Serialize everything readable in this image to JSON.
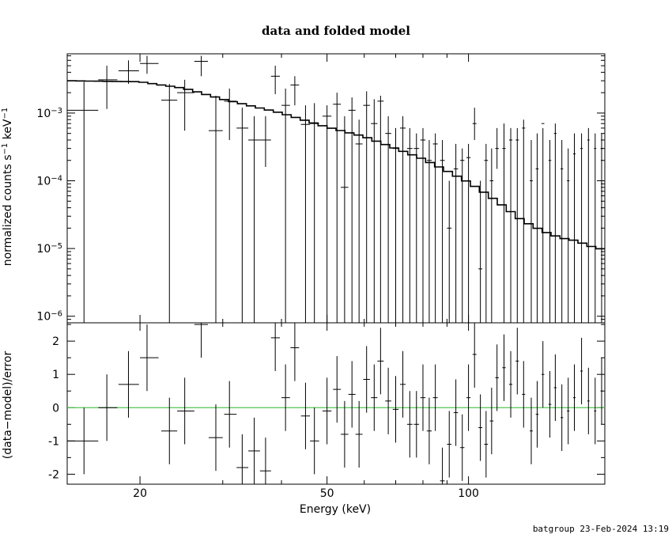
{
  "chart_data": {
    "type": "scatter",
    "title": "data and folded model",
    "xlabel": "Energy (keV)",
    "xscale": "log",
    "xlim": [
      14,
      195
    ],
    "xticks": [
      20,
      50,
      100
    ],
    "footer": "batgroup 23-Feb-2024 13:19",
    "grid": false,
    "top": {
      "ylabel_base": "normalized counts s",
      "ylabel_mid": " keV",
      "ylabel_exp": "−1",
      "yscale": "log",
      "ylim": [
        8e-07,
        0.0075
      ],
      "yticks": [
        {
          "value": 0.001,
          "base": "10",
          "exp": "−3"
        },
        {
          "value": 0.0001,
          "base": "10",
          "exp": "−4"
        },
        {
          "value": 1e-05,
          "base": "10",
          "exp": "−5"
        },
        {
          "value": 1e-06,
          "base": "10",
          "exp": "−6"
        }
      ],
      "data": [
        {
          "x": 15.2,
          "xlo": 14.0,
          "xhi": 16.3,
          "y": 0.0011,
          "ylo": 8e-07,
          "yhi": 0.0029
        },
        {
          "x": 17.0,
          "xlo": 16.3,
          "xhi": 17.9,
          "y": 0.0031,
          "ylo": 0.00115,
          "yhi": 0.005
        },
        {
          "x": 18.9,
          "xlo": 18.0,
          "xhi": 19.9,
          "y": 0.0042,
          "ylo": 0.0027,
          "yhi": 0.006
        },
        {
          "x": 20.7,
          "xlo": 20.0,
          "xhi": 21.9,
          "y": 0.0054,
          "ylo": 0.0038,
          "yhi": 0.007
        },
        {
          "x": 23.1,
          "xlo": 22.2,
          "xhi": 24.0,
          "y": 0.00155,
          "ylo": 8e-07,
          "yhi": 0.0027
        },
        {
          "x": 24.9,
          "xlo": 24.0,
          "xhi": 26.1,
          "y": 0.002,
          "ylo": 0.00055,
          "yhi": 0.0031
        },
        {
          "x": 27.0,
          "xlo": 26.1,
          "xhi": 27.9,
          "y": 0.0058,
          "ylo": 0.0035,
          "yhi": 0.007
        },
        {
          "x": 29.0,
          "xlo": 28.0,
          "xhi": 30.0,
          "y": 0.00055,
          "ylo": 8e-07,
          "yhi": 0.0018
        },
        {
          "x": 31.0,
          "xlo": 30.2,
          "xhi": 32.1,
          "y": 0.0015,
          "ylo": 0.0004,
          "yhi": 0.0023
        },
        {
          "x": 33.0,
          "xlo": 32.1,
          "xhi": 34.0,
          "y": 0.0006,
          "ylo": 8e-07,
          "yhi": 0.0012
        },
        {
          "x": 35.0,
          "xlo": 34.0,
          "xhi": 36.0,
          "y": 0.0004,
          "ylo": 8e-07,
          "yhi": 0.0009
        },
        {
          "x": 37.0,
          "xlo": 36.0,
          "xhi": 38.0,
          "y": 0.0004,
          "ylo": 0.00016,
          "yhi": 0.0009
        },
        {
          "x": 38.8,
          "xlo": 38.0,
          "xhi": 39.7,
          "y": 0.0035,
          "ylo": 0.0019,
          "yhi": 0.005
        },
        {
          "x": 40.8,
          "xlo": 40.0,
          "xhi": 41.7,
          "y": 0.0013,
          "ylo": 8e-07,
          "yhi": 0.0023
        },
        {
          "x": 42.7,
          "xlo": 41.8,
          "xhi": 43.6,
          "y": 0.0026,
          "ylo": 0.0013,
          "yhi": 0.0035
        },
        {
          "x": 45.0,
          "xlo": 44.0,
          "xhi": 46.0,
          "y": 0.00068,
          "ylo": 8e-07,
          "yhi": 0.0013
        },
        {
          "x": 47.0,
          "xlo": 46.0,
          "xhi": 48.1,
          "y": 0.0007,
          "ylo": 8e-07,
          "yhi": 0.0014
        },
        {
          "x": 50.0,
          "xlo": 48.9,
          "xhi": 51.1,
          "y": 0.0009,
          "ylo": 8e-07,
          "yhi": 0.0013
        },
        {
          "x": 52.5,
          "xlo": 51.5,
          "xhi": 53.5,
          "y": 0.00135,
          "ylo": 8e-07,
          "yhi": 0.002
        },
        {
          "x": 54.5,
          "xlo": 53.5,
          "xhi": 55.5,
          "y": 8e-05,
          "ylo": 8e-07,
          "yhi": 0.0009
        },
        {
          "x": 56.5,
          "xlo": 55.5,
          "xhi": 57.5,
          "y": 0.0011,
          "ylo": 8e-07,
          "yhi": 0.0017
        },
        {
          "x": 58.5,
          "xlo": 57.5,
          "xhi": 59.5,
          "y": 0.00035,
          "ylo": 8e-07,
          "yhi": 0.0008
        },
        {
          "x": 60.7,
          "xlo": 59.7,
          "xhi": 61.7,
          "y": 0.0013,
          "ylo": 8e-07,
          "yhi": 0.0021
        },
        {
          "x": 63.0,
          "xlo": 62.0,
          "xhi": 64.0,
          "y": 0.0007,
          "ylo": 8e-07,
          "yhi": 0.0016
        },
        {
          "x": 65.0,
          "xlo": 64.0,
          "xhi": 66.0,
          "y": 0.0015,
          "ylo": 8e-07,
          "yhi": 0.0018
        },
        {
          "x": 67.5,
          "xlo": 66.5,
          "xhi": 68.5,
          "y": 0.0005,
          "ylo": 8e-07,
          "yhi": 0.0009
        },
        {
          "x": 70.0,
          "xlo": 69.0,
          "xhi": 71.0,
          "y": 0.0003,
          "ylo": 8e-07,
          "yhi": 0.0006
        },
        {
          "x": 72.5,
          "xlo": 71.5,
          "xhi": 73.5,
          "y": 0.0006,
          "ylo": 8e-07,
          "yhi": 0.0009
        },
        {
          "x": 75.0,
          "xlo": 74.0,
          "xhi": 76.0,
          "y": 0.0003,
          "ylo": 8e-07,
          "yhi": 0.0006
        },
        {
          "x": 77.5,
          "xlo": 76.5,
          "xhi": 78.5,
          "y": 0.0003,
          "ylo": 8e-07,
          "yhi": 0.0005
        },
        {
          "x": 80.0,
          "xlo": 79.0,
          "xhi": 81.0,
          "y": 0.0004,
          "ylo": 8e-07,
          "yhi": 0.0006
        },
        {
          "x": 82.5,
          "xlo": 81.5,
          "xhi": 83.5,
          "y": 0.0002,
          "ylo": 8e-07,
          "yhi": 0.0004
        },
        {
          "x": 85.0,
          "xlo": 84.0,
          "xhi": 86.0,
          "y": 0.00035,
          "ylo": 8e-07,
          "yhi": 0.0005
        },
        {
          "x": 88.0,
          "xlo": 87.0,
          "xhi": 89.0,
          "y": 0.0002,
          "ylo": 8e-07,
          "yhi": 0.0004
        },
        {
          "x": 91.0,
          "xlo": 90.0,
          "xhi": 92.0,
          "y": 2e-05,
          "ylo": 8e-07,
          "yhi": 0.0001
        },
        {
          "x": 94.0,
          "xlo": 93.0,
          "xhi": 95.0,
          "y": 0.00015,
          "ylo": 8e-07,
          "yhi": 0.00035
        },
        {
          "x": 97.0,
          "xlo": 96.0,
          "xhi": 98.0,
          "y": 0.0002,
          "ylo": 8e-07,
          "yhi": 0.0003
        },
        {
          "x": 100.0,
          "xlo": 99.0,
          "xhi": 101.0,
          "y": 0.00022,
          "ylo": 8e-07,
          "yhi": 0.00035
        },
        {
          "x": 103.0,
          "xlo": 102.0,
          "xhi": 104.0,
          "y": 0.0007,
          "ylo": 0.0004,
          "yhi": 0.0012
        },
        {
          "x": 106.0,
          "xlo": 105.0,
          "xhi": 107.0,
          "y": 5e-06,
          "ylo": 8e-07,
          "yhi": 0.0001
        },
        {
          "x": 109.0,
          "xlo": 108.0,
          "xhi": 110.0,
          "y": 0.0002,
          "ylo": 8e-07,
          "yhi": 0.00035
        },
        {
          "x": 112.0,
          "xlo": 111.0,
          "xhi": 113.0,
          "y": 0.0001,
          "ylo": 8e-07,
          "yhi": 0.0003
        },
        {
          "x": 115.0,
          "xlo": 114.0,
          "xhi": 116.0,
          "y": 0.0003,
          "ylo": 0.00015,
          "yhi": 0.0006
        },
        {
          "x": 119.0,
          "xlo": 118.0,
          "xhi": 120.0,
          "y": 0.0003,
          "ylo": 8e-07,
          "yhi": 0.0007
        },
        {
          "x": 123.0,
          "xlo": 122.0,
          "xhi": 124.0,
          "y": 0.0004,
          "ylo": 8e-07,
          "yhi": 0.0006
        },
        {
          "x": 127.0,
          "xlo": 126.0,
          "xhi": 128.0,
          "y": 0.0004,
          "ylo": 8e-07,
          "yhi": 0.0006
        },
        {
          "x": 131.0,
          "xlo": 130.0,
          "xhi": 132.0,
          "y": 0.0006,
          "ylo": 8e-07,
          "yhi": 0.0008
        },
        {
          "x": 136.0,
          "xlo": 135.0,
          "xhi": 137.0,
          "y": 0.0001,
          "ylo": 8e-07,
          "yhi": 0.0004
        },
        {
          "x": 140.0,
          "xlo": 139.0,
          "xhi": 141.0,
          "y": 0.00015,
          "ylo": 8e-07,
          "yhi": 0.0005
        },
        {
          "x": 144.0,
          "xlo": 143.0,
          "xhi": 145.0,
          "y": 0.0007,
          "ylo": 8e-07,
          "yhi": 0.0006
        },
        {
          "x": 149.0,
          "xlo": 148.0,
          "xhi": 150.0,
          "y": 0.0002,
          "ylo": 8e-07,
          "yhi": 0.0004
        },
        {
          "x": 153.0,
          "xlo": 152.0,
          "xhi": 154.0,
          "y": 0.0005,
          "ylo": 8e-07,
          "yhi": 0.0007
        },
        {
          "x": 158.0,
          "xlo": 157.0,
          "xhi": 159.0,
          "y": 0.00015,
          "ylo": 8e-07,
          "yhi": 0.0004
        },
        {
          "x": 163.0,
          "xlo": 162.0,
          "xhi": 164.0,
          "y": 0.0001,
          "ylo": 8e-07,
          "yhi": 0.0003
        },
        {
          "x": 168.0,
          "xlo": 167.0,
          "xhi": 169.0,
          "y": 0.00025,
          "ylo": 8e-07,
          "yhi": 0.0005
        },
        {
          "x": 174.0,
          "xlo": 173.0,
          "xhi": 175.0,
          "y": 0.0003,
          "ylo": 8e-07,
          "yhi": 0.0005
        },
        {
          "x": 180.0,
          "xlo": 179.0,
          "xhi": 181.0,
          "y": 0.0004,
          "ylo": 8e-07,
          "yhi": 0.0006
        },
        {
          "x": 186.0,
          "xlo": 185.0,
          "xhi": 187.0,
          "y": 0.0003,
          "ylo": 8e-07,
          "yhi": 0.0005
        },
        {
          "x": 192.0,
          "xlo": 191.0,
          "xhi": 193.0,
          "y": 0.0003,
          "ylo": 8e-07,
          "yhi": 0.0005
        }
      ],
      "model_anchor": [
        {
          "x": 14.0,
          "y": 0.003
        },
        {
          "x": 20.0,
          "y": 0.0029
        },
        {
          "x": 25.0,
          "y": 0.0023
        },
        {
          "x": 30.0,
          "y": 0.0016
        },
        {
          "x": 40.0,
          "y": 0.001
        },
        {
          "x": 50.0,
          "y": 0.00062
        },
        {
          "x": 60.0,
          "y": 0.00045
        },
        {
          "x": 70.0,
          "y": 0.0003
        },
        {
          "x": 80.0,
          "y": 0.00021
        },
        {
          "x": 90.0,
          "y": 0.00014
        },
        {
          "x": 100.0,
          "y": 9.5e-05
        },
        {
          "x": 110.0,
          "y": 6.2e-05
        },
        {
          "x": 120.0,
          "y": 4e-05
        },
        {
          "x": 130.0,
          "y": 2.6e-05
        },
        {
          "x": 140.0,
          "y": 2e-05
        },
        {
          "x": 150.0,
          "y": 1.6e-05
        },
        {
          "x": 160.0,
          "y": 1.4e-05
        },
        {
          "x": 170.0,
          "y": 1.3e-05
        },
        {
          "x": 180.0,
          "y": 1.1e-05
        },
        {
          "x": 195.0,
          "y": 9.5e-06
        }
      ]
    },
    "bottom": {
      "ylabel": "(data−model)/error",
      "ylim": [
        -2.3,
        2.55
      ],
      "yticks": [
        -2,
        -1,
        0,
        1,
        2
      ],
      "zero_line_color": "#55c455",
      "data": [
        {
          "x": 15.2,
          "xlo": 14.0,
          "xhi": 16.3,
          "y": -1.0,
          "yerr": 1.0
        },
        {
          "x": 17.0,
          "xlo": 16.3,
          "xhi": 17.9,
          "y": 0.0,
          "yerr": 1.0
        },
        {
          "x": 18.9,
          "xlo": 18.0,
          "xhi": 19.9,
          "y": 0.7,
          "yerr": 1.0
        },
        {
          "x": 20.7,
          "xlo": 20.0,
          "xhi": 21.9,
          "y": 1.5,
          "yerr": 1.0
        },
        {
          "x": 23.1,
          "xlo": 22.2,
          "xhi": 24.0,
          "y": -0.7,
          "yerr": 1.0
        },
        {
          "x": 24.9,
          "xlo": 24.0,
          "xhi": 26.1,
          "y": -0.1,
          "yerr": 1.0
        },
        {
          "x": 27.0,
          "xlo": 26.1,
          "xhi": 27.9,
          "y": 2.5,
          "yerr": 1.0
        },
        {
          "x": 29.0,
          "xlo": 28.0,
          "xhi": 30.0,
          "y": -0.9,
          "yerr": 1.0
        },
        {
          "x": 31.0,
          "xlo": 30.2,
          "xhi": 32.1,
          "y": -0.2,
          "yerr": 1.0
        },
        {
          "x": 33.0,
          "xlo": 32.1,
          "xhi": 34.0,
          "y": -1.8,
          "yerr": 1.0
        },
        {
          "x": 35.0,
          "xlo": 34.0,
          "xhi": 36.0,
          "y": -1.3,
          "yerr": 1.0
        },
        {
          "x": 37.0,
          "xlo": 36.0,
          "xhi": 38.0,
          "y": -1.9,
          "yerr": 1.0
        },
        {
          "x": 38.8,
          "xlo": 38.0,
          "xhi": 39.7,
          "y": 2.1,
          "yerr": 1.0
        },
        {
          "x": 40.8,
          "xlo": 40.0,
          "xhi": 41.7,
          "y": 0.3,
          "yerr": 1.0
        },
        {
          "x": 42.7,
          "xlo": 41.8,
          "xhi": 43.6,
          "y": 1.8,
          "yerr": 1.0
        },
        {
          "x": 45.0,
          "xlo": 44.0,
          "xhi": 46.0,
          "y": -0.25,
          "yerr": 1.0
        },
        {
          "x": 47.0,
          "xlo": 46.0,
          "xhi": 48.1,
          "y": -1.0,
          "yerr": 1.0
        },
        {
          "x": 50.0,
          "xlo": 48.9,
          "xhi": 51.1,
          "y": -0.1,
          "yerr": 1.0
        },
        {
          "x": 52.5,
          "xlo": 51.5,
          "xhi": 53.5,
          "y": 0.55,
          "yerr": 1.0
        },
        {
          "x": 54.5,
          "xlo": 53.5,
          "xhi": 55.5,
          "y": -0.8,
          "yerr": 1.0
        },
        {
          "x": 56.5,
          "xlo": 55.5,
          "xhi": 57.5,
          "y": 0.4,
          "yerr": 1.0
        },
        {
          "x": 58.5,
          "xlo": 57.5,
          "xhi": 59.5,
          "y": -0.8,
          "yerr": 1.0
        },
        {
          "x": 60.7,
          "xlo": 59.7,
          "xhi": 61.7,
          "y": 0.85,
          "yerr": 1.0
        },
        {
          "x": 63.0,
          "xlo": 62.0,
          "xhi": 64.0,
          "y": 0.3,
          "yerr": 1.0
        },
        {
          "x": 65.0,
          "xlo": 64.0,
          "xhi": 66.0,
          "y": 1.4,
          "yerr": 1.0
        },
        {
          "x": 67.5,
          "xlo": 66.5,
          "xhi": 68.5,
          "y": 0.2,
          "yerr": 1.0
        },
        {
          "x": 70.0,
          "xlo": 69.0,
          "xhi": 71.0,
          "y": -0.05,
          "yerr": 1.0
        },
        {
          "x": 72.5,
          "xlo": 71.5,
          "xhi": 73.5,
          "y": 0.7,
          "yerr": 1.0
        },
        {
          "x": 75.0,
          "xlo": 74.0,
          "xhi": 76.0,
          "y": -0.5,
          "yerr": 1.0
        },
        {
          "x": 77.5,
          "xlo": 76.5,
          "xhi": 78.5,
          "y": -0.5,
          "yerr": 1.0
        },
        {
          "x": 80.0,
          "xlo": 79.0,
          "xhi": 81.0,
          "y": 0.3,
          "yerr": 1.0
        },
        {
          "x": 82.5,
          "xlo": 81.5,
          "xhi": 83.5,
          "y": -0.7,
          "yerr": 1.0
        },
        {
          "x": 85.0,
          "xlo": 84.0,
          "xhi": 86.0,
          "y": 0.3,
          "yerr": 1.0
        },
        {
          "x": 88.0,
          "xlo": 87.0,
          "xhi": 89.0,
          "y": -2.2,
          "yerr": 1.0
        },
        {
          "x": 91.0,
          "xlo": 90.0,
          "xhi": 92.0,
          "y": -1.1,
          "yerr": 1.0
        },
        {
          "x": 94.0,
          "xlo": 93.0,
          "xhi": 95.0,
          "y": -0.15,
          "yerr": 1.0
        },
        {
          "x": 97.0,
          "xlo": 96.0,
          "xhi": 98.0,
          "y": -1.2,
          "yerr": 1.0
        },
        {
          "x": 100.0,
          "xlo": 99.0,
          "xhi": 101.0,
          "y": 0.3,
          "yerr": 1.0
        },
        {
          "x": 103.0,
          "xlo": 102.0,
          "xhi": 104.0,
          "y": 1.6,
          "yerr": 1.0
        },
        {
          "x": 106.0,
          "xlo": 105.0,
          "xhi": 107.0,
          "y": -0.6,
          "yerr": 1.0
        },
        {
          "x": 109.0,
          "xlo": 108.0,
          "xhi": 110.0,
          "y": -1.1,
          "yerr": 1.0
        },
        {
          "x": 112.0,
          "xlo": 111.0,
          "xhi": 113.0,
          "y": -0.4,
          "yerr": 1.0
        },
        {
          "x": 115.0,
          "xlo": 114.0,
          "xhi": 116.0,
          "y": 0.9,
          "yerr": 1.0
        },
        {
          "x": 119.0,
          "xlo": 118.0,
          "xhi": 120.0,
          "y": 1.2,
          "yerr": 1.0
        },
        {
          "x": 123.0,
          "xlo": 122.0,
          "xhi": 124.0,
          "y": 0.7,
          "yerr": 1.0
        },
        {
          "x": 127.0,
          "xlo": 126.0,
          "xhi": 128.0,
          "y": 1.4,
          "yerr": 1.0
        },
        {
          "x": 131.0,
          "xlo": 130.0,
          "xhi": 132.0,
          "y": 0.4,
          "yerr": 1.0
        },
        {
          "x": 136.0,
          "xlo": 135.0,
          "xhi": 137.0,
          "y": -0.7,
          "yerr": 1.0
        },
        {
          "x": 140.0,
          "xlo": 139.0,
          "xhi": 141.0,
          "y": -0.2,
          "yerr": 1.0
        },
        {
          "x": 144.0,
          "xlo": 143.0,
          "xhi": 145.0,
          "y": 1.0,
          "yerr": 1.0
        },
        {
          "x": 149.0,
          "xlo": 148.0,
          "xhi": 150.0,
          "y": 0.1,
          "yerr": 1.0
        },
        {
          "x": 153.0,
          "xlo": 152.0,
          "xhi": 154.0,
          "y": 0.6,
          "yerr": 1.0
        },
        {
          "x": 158.0,
          "xlo": 157.0,
          "xhi": 159.0,
          "y": -0.3,
          "yerr": 1.0
        },
        {
          "x": 163.0,
          "xlo": 162.0,
          "xhi": 164.0,
          "y": -0.1,
          "yerr": 1.0
        },
        {
          "x": 168.0,
          "xlo": 167.0,
          "xhi": 169.0,
          "y": 0.3,
          "yerr": 1.0
        },
        {
          "x": 174.0,
          "xlo": 173.0,
          "xhi": 175.0,
          "y": 1.1,
          "yerr": 1.0
        },
        {
          "x": 180.0,
          "xlo": 179.0,
          "xhi": 181.0,
          "y": 0.2,
          "yerr": 1.0
        },
        {
          "x": 186.0,
          "xlo": 185.0,
          "xhi": 187.0,
          "y": -0.1,
          "yerr": 1.0
        },
        {
          "x": 192.0,
          "xlo": 191.0,
          "xhi": 193.0,
          "y": 0.5,
          "yerr": 1.0
        }
      ]
    }
  }
}
